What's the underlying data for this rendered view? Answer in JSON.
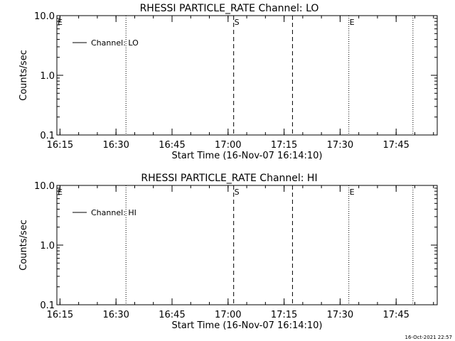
{
  "chart_data": [
    {
      "type": "line",
      "title": "RHESSI PARTICLE_RATE Channel: LO",
      "xlabel": "Start Time (16-Nov-07 16:14:10)",
      "ylabel": "Counts/sec",
      "yscale": "log",
      "xlim": [
        "16:14:10",
        "17:56:00"
      ],
      "ylim": [
        0.1,
        10.0
      ],
      "xticks": [
        "16:15",
        "16:30",
        "16:45",
        "17:00",
        "17:15",
        "17:30",
        "17:45"
      ],
      "yticks": [
        "0.1",
        "1.0",
        "10.0"
      ],
      "legend": {
        "placement": "top-left",
        "entries": [
          "Channel: LO"
        ]
      },
      "series": [
        {
          "name": "Channel: LO",
          "x": [],
          "y": []
        }
      ],
      "markers": [
        {
          "time": "16:14:10",
          "style": "dotted",
          "label": "E"
        },
        {
          "time": "16:32:40",
          "style": "dotted",
          "label": ""
        },
        {
          "time": "17:01:30",
          "style": "dashed",
          "label": "S"
        },
        {
          "time": "17:17:15",
          "style": "dashed",
          "label": ""
        },
        {
          "time": "17:32:20",
          "style": "dotted",
          "label": "E"
        },
        {
          "time": "17:49:30",
          "style": "dotted",
          "label": ""
        }
      ]
    },
    {
      "type": "line",
      "title": "RHESSI PARTICLE_RATE Channel: HI",
      "xlabel": "Start Time (16-Nov-07 16:14:10)",
      "ylabel": "Counts/sec",
      "yscale": "log",
      "xlim": [
        "16:14:10",
        "17:56:00"
      ],
      "ylim": [
        0.1,
        10.0
      ],
      "xticks": [
        "16:15",
        "16:30",
        "16:45",
        "17:00",
        "17:15",
        "17:30",
        "17:45"
      ],
      "yticks": [
        "0.1",
        "1.0",
        "10.0"
      ],
      "legend": {
        "placement": "top-left",
        "entries": [
          "Channel: HI"
        ]
      },
      "series": [
        {
          "name": "Channel: HI",
          "x": [],
          "y": []
        }
      ],
      "markers": [
        {
          "time": "16:14:10",
          "style": "dotted",
          "label": "E"
        },
        {
          "time": "16:32:40",
          "style": "dotted",
          "label": ""
        },
        {
          "time": "17:01:30",
          "style": "dashed",
          "label": "S"
        },
        {
          "time": "17:17:15",
          "style": "dashed",
          "label": ""
        },
        {
          "time": "17:32:20",
          "style": "dotted",
          "label": "E"
        },
        {
          "time": "17:49:30",
          "style": "dotted",
          "label": ""
        }
      ]
    }
  ],
  "footer": {
    "timestamp": "16-Oct-2021 22:57"
  }
}
